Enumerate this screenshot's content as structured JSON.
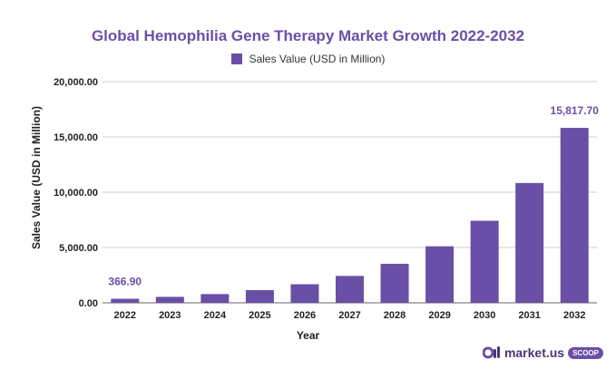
{
  "chart_data": {
    "type": "bar",
    "title": "Global Hemophilia Gene Therapy Market Growth 2022-2032",
    "xlabel": "Year",
    "ylabel": "Sales Value (USD in Million)",
    "legend": {
      "position": "top",
      "label": "Sales Value (USD in Million)"
    },
    "categories": [
      "2022",
      "2023",
      "2024",
      "2025",
      "2026",
      "2027",
      "2028",
      "2029",
      "2030",
      "2031",
      "2032"
    ],
    "series": [
      {
        "name": "Sales Value (USD in Million)",
        "color": "#6a4fa6",
        "values": [
          366.9,
          540,
          790,
          1150,
          1680,
          2430,
          3530,
          5110,
          7420,
          10830,
          15817.7
        ]
      }
    ],
    "data_labels": [
      {
        "index": 0,
        "text": "366.90"
      },
      {
        "index": 10,
        "text": "15,817.70"
      }
    ],
    "ylim": [
      0,
      20000
    ],
    "yticks": [
      "0.00",
      "5,000.00",
      "10,000.00",
      "15,000.00",
      "20,000.00"
    ],
    "ytick_values": [
      0,
      5000,
      10000,
      15000,
      20000
    ],
    "grid": true
  },
  "brand": {
    "name": "market.us",
    "badge": "SCOOP",
    "icon": "market-us-logo-icon"
  }
}
